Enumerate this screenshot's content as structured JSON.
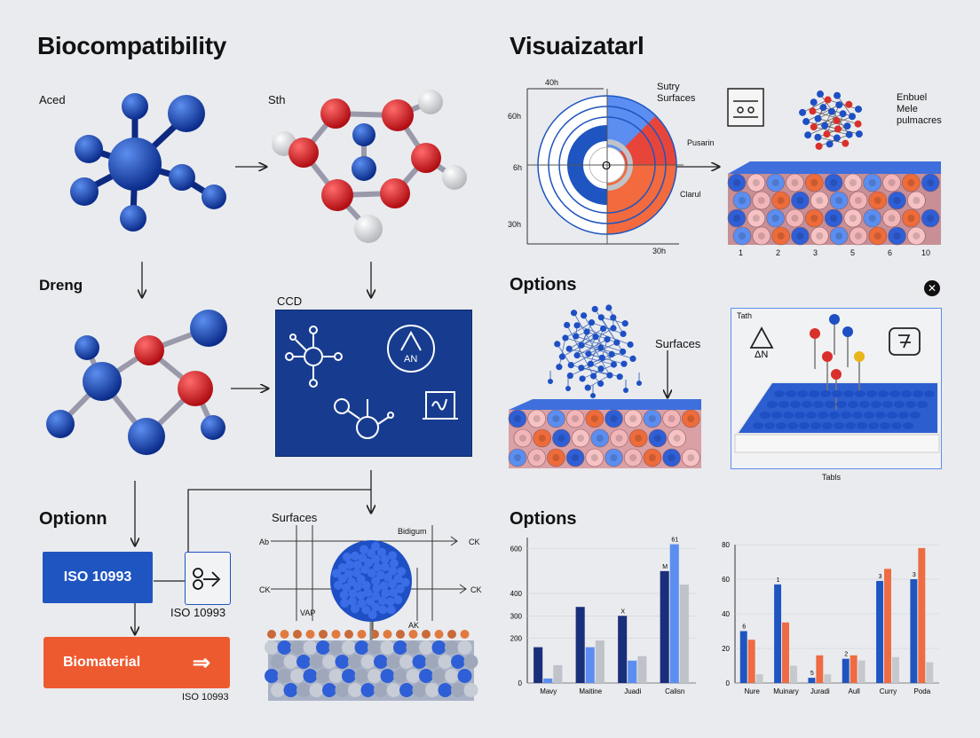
{
  "titles": {
    "left": "Biocompatibility",
    "right": "Visuaizatarl"
  },
  "molecules": {
    "a": "Aced",
    "b": "Sth",
    "c": "Dreng",
    "d": "CCD"
  },
  "ccd_panel": {
    "an_label": "AN"
  },
  "option_left": "Optionn",
  "iso_button": "ISO 10993",
  "iso_caption": "ISO 10993",
  "biomaterial_button": "Biomaterial",
  "biomaterial_arrow": "⇒",
  "iso_caption_bottom": "ISO 10993",
  "surfaces_diagram": {
    "title": "Surfaces",
    "top_label": "Bidigum",
    "left_top": "Ab",
    "right_top": "CK",
    "left_mid": "CK",
    "right_mid": "CK",
    "bottom_left": "VAP",
    "bottom_right": "AK"
  },
  "radial": {
    "top_label": "40h",
    "right_label1": "Sutry",
    "right_label2": "Surfaces",
    "left_labels": [
      "60h",
      "6h",
      "30h"
    ],
    "center": "O",
    "right_labels": [
      "Pusarin",
      "Clarul"
    ],
    "bottom_label": "30h"
  },
  "surface_panel_tr": {
    "labels": [
      "Enbuel",
      "Mele",
      "pulmacres"
    ],
    "ticks": [
      "1",
      "2",
      "3",
      "5",
      "6",
      "10"
    ]
  },
  "options_mid": {
    "title": "Options",
    "surfaces_label": "Surfaces"
  },
  "test_panel": {
    "top_label": "Tath",
    "bottom_label": "Tabls",
    "an_label": "ΔN"
  },
  "options_bottom": "Options",
  "chart_data": [
    {
      "type": "bar",
      "categories": [
        "Mavy",
        "Maitine",
        "Juadi",
        "Calisn"
      ],
      "series": [
        {
          "values": [
            160,
            340,
            300,
            500
          ],
          "color": "#1a2f7a"
        },
        {
          "values": [
            20,
            160,
            100,
            620
          ],
          "color": "#5b8ef0"
        },
        {
          "values": [
            80,
            190,
            120,
            440
          ],
          "color": "#bfc3c9"
        }
      ],
      "ylim": [
        0,
        650
      ],
      "yticks": [
        0,
        200,
        300,
        400,
        600
      ],
      "bar_labels": [
        "",
        "",
        "X",
        "M"
      ],
      "top_label": "61"
    },
    {
      "type": "bar",
      "categories": [
        "Nure",
        "Muinary",
        "Juradi",
        "Aull",
        "Curry",
        "Poda"
      ],
      "series": [
        {
          "values": [
            30,
            57,
            3,
            14,
            59,
            60
          ],
          "color": "#1e55c0"
        },
        {
          "values": [
            25,
            35,
            16,
            16,
            66,
            78
          ],
          "color": "#ee6b43"
        },
        {
          "values": [
            5,
            10,
            5,
            13,
            15,
            12
          ],
          "color": "#c5c8cc"
        }
      ],
      "ylim": [
        0,
        80
      ],
      "yticks": [
        0,
        20,
        40,
        60,
        80
      ],
      "bar_labels": [
        "6",
        "1",
        "5",
        "2",
        "3",
        "3"
      ]
    }
  ]
}
